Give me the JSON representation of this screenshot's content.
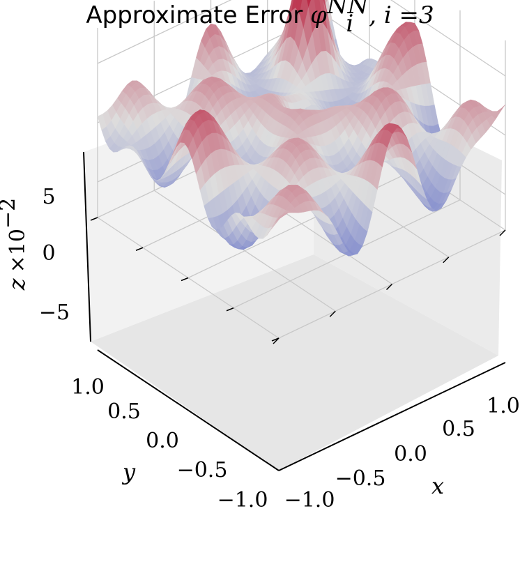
{
  "chart_data": {
    "type": "surface3d",
    "title_text": "Approximate Error ",
    "title_math": "φ",
    "title_sup": "NN",
    "title_sub": "i",
    "title_tail": ", i =3",
    "x": {
      "label": "x",
      "range": [
        -1,
        1
      ],
      "tick_labels": [
        "−1.0",
        "−0.5",
        "0.0",
        "0.5",
        "1.0"
      ]
    },
    "y": {
      "label": "y",
      "range": [
        -1,
        1
      ],
      "tick_labels": [
        "−1.0",
        "−0.5",
        "0.0",
        "0.5",
        "1.0"
      ]
    },
    "z": {
      "label": "z",
      "scale_label": "×10",
      "scale_exp": "−2",
      "range": [
        -8,
        8
      ],
      "tick_labels": [
        "−5",
        "0",
        "5"
      ],
      "ticks": [
        -5,
        0,
        5
      ]
    },
    "colormap": "coolwarm",
    "colors": {
      "low": "#3b4cc0",
      "mid": "#dddddd",
      "high": "#b40426"
    },
    "grid": true,
    "surface_extremes": {
      "max": 7.5,
      "min": -7.2
    }
  }
}
